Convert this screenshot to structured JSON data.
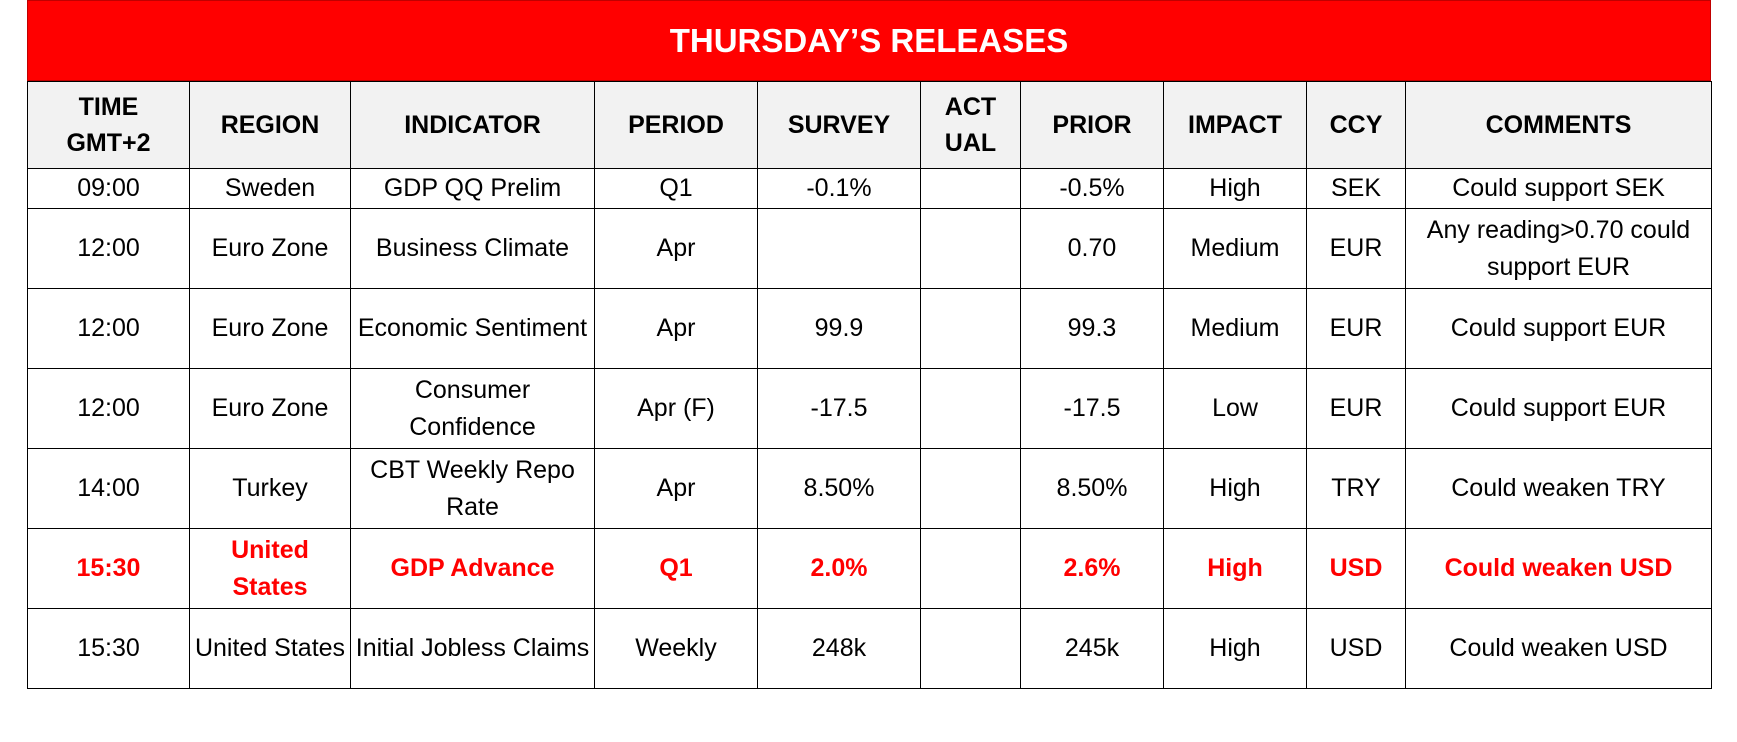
{
  "title": "THURSDAY’S RELEASES",
  "table": {
    "headers": [
      "TIME\nGMT+2",
      "REGION",
      "INDICATOR",
      "PERIOD",
      "SURVEY",
      "ACT\nUAL",
      "PRIOR",
      "IMPACT",
      "CCY",
      "COMMENTS"
    ],
    "rows": [
      [
        "09:00",
        "Sweden",
        "GDP QQ Prelim",
        "Q1",
        "-0.1%",
        null,
        "-0.5%",
        "High",
        "SEK",
        "Could support SEK"
      ],
      [
        "12:00",
        "Euro Zone",
        "Business Climate",
        "Apr",
        null,
        null,
        "0.70",
        "Medium",
        "EUR",
        "Any reading>0.70 could support EUR"
      ],
      [
        "12:00",
        "Euro Zone",
        "Economic Sentiment",
        "Apr",
        "99.9",
        null,
        "99.3",
        "Medium",
        "EUR",
        "Could support EUR"
      ],
      [
        "12:00",
        "Euro Zone",
        "Consumer Confidence",
        "Apr (F)",
        "-17.5",
        null,
        "-17.5",
        "Low",
        "EUR",
        "Could support EUR"
      ],
      [
        "14:00",
        "Turkey",
        "CBT Weekly Repo Rate",
        "Apr",
        "8.50%",
        null,
        "8.50%",
        "High",
        "TRY",
        "Could weaken TRY"
      ],
      [
        "15:30",
        "United States",
        "GDP Advance",
        "Q1",
        "2.0%",
        null,
        "2.6%",
        "High",
        "USD",
        "Could weaken USD"
      ],
      [
        "15:30",
        "United States",
        "Initial Jobless Claims",
        "Weekly",
        "248k",
        null,
        "245k",
        "High",
        "USD",
        "Could weaken USD"
      ]
    ],
    "highlight_row": 5
  }
}
